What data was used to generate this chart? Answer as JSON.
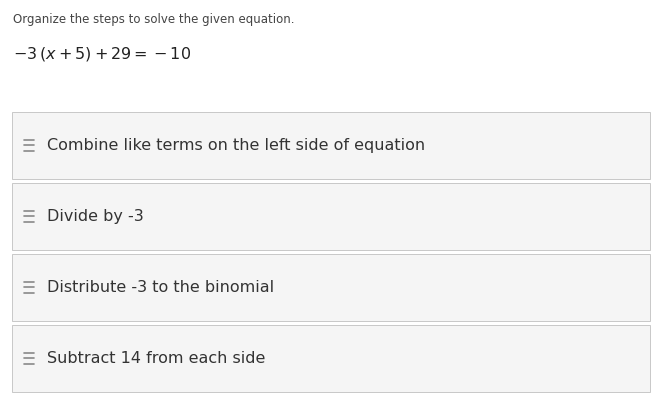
{
  "title": "Organize the steps to solve the given equation.",
  "equation": "$-3\\,(x+5)+29=-10$",
  "steps": [
    "Combine like terms on the left side of equation",
    "Divide by -3",
    "Distribute -3 to the binomial",
    "Subtract 14 from each side"
  ],
  "bg_color": "#ffffff",
  "title_color": "#444444",
  "equation_color": "#222222",
  "step_color": "#333333",
  "box_bg": "#f5f5f5",
  "box_border": "#c8c8c8",
  "icon_color": "#888888",
  "title_fontsize": 8.5,
  "equation_fontsize": 11.5,
  "step_fontsize": 11.5,
  "fig_width": 6.54,
  "fig_height": 4.01,
  "dpi": 100
}
